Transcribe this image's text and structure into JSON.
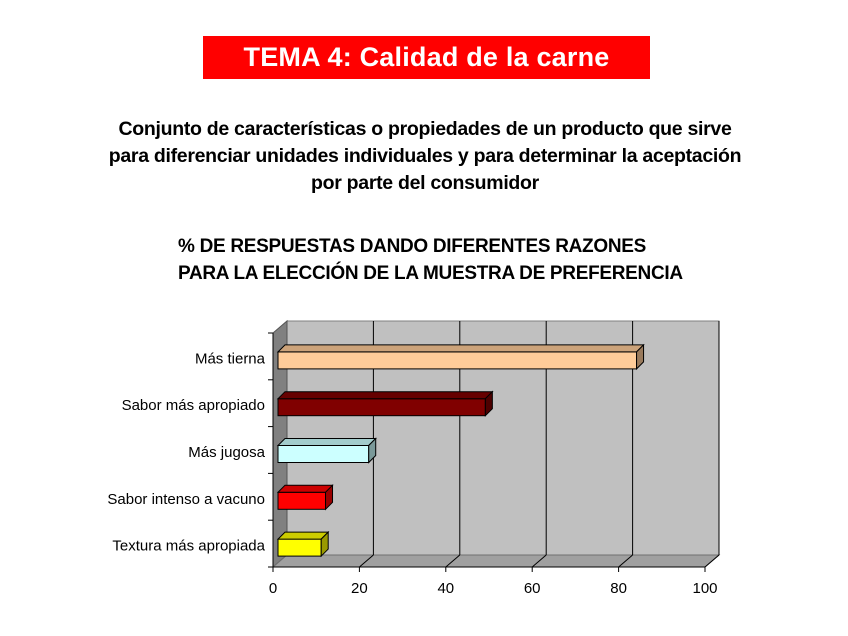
{
  "header": {
    "title": "TEMA 4: Calidad de la carne"
  },
  "description": {
    "lines": [
      "Conjunto de características o propiedades de un producto que sirve",
      "para diferenciar unidades individuales y para determinar la aceptación",
      "por parte del consumidor"
    ]
  },
  "chart_data": {
    "type": "bar",
    "orientation": "horizontal",
    "style": "3d",
    "title_lines": [
      "% DE RESPUESTAS DANDO DIFERENTES RAZONES",
      "PARA LA ELECCIÓN DE LA MUESTRA DE PREFERENCIA"
    ],
    "categories": [
      "Más tierna",
      "Sabor más apropiado",
      "Más jugosa",
      "Sabor intenso a vacuno",
      "Textura más apropiada"
    ],
    "values": [
      83,
      48,
      21,
      11,
      10
    ],
    "colors": [
      "#ffcc99",
      "#800000",
      "#ccffff",
      "#ff0000",
      "#ffff00"
    ],
    "xlim": [
      0,
      100
    ],
    "xticks": [
      0,
      20,
      40,
      60,
      80,
      100
    ],
    "grid": true,
    "legend": "none",
    "wall_color": "#c0c0c0"
  }
}
